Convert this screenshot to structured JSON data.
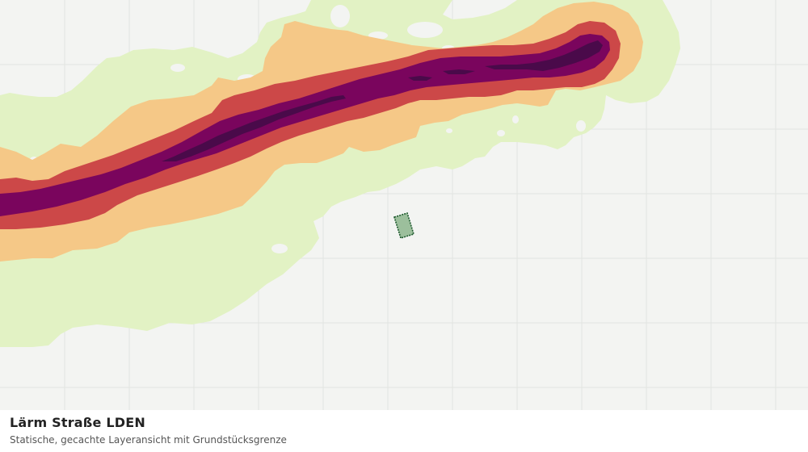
{
  "layer": {
    "title": "Lärm Straße LDEN",
    "subtitle": "Statische, gecachte Layeransicht mit Grundstücksgrenze"
  },
  "map": {
    "background_color": "#f3f4f2",
    "grid_color": "#e2e4e1",
    "icon": "noise-contour-map",
    "noise_band_colors": {
      "band_1_outer": "#e2f2c4",
      "band_2": "#f5c887",
      "band_3": "#cc4848",
      "band_4": "#7a055d",
      "band_5_core": "#4a0a4a"
    },
    "parcel": {
      "fill_color": "#9cbf9c",
      "stroke_color": "#1e5a2e"
    }
  }
}
